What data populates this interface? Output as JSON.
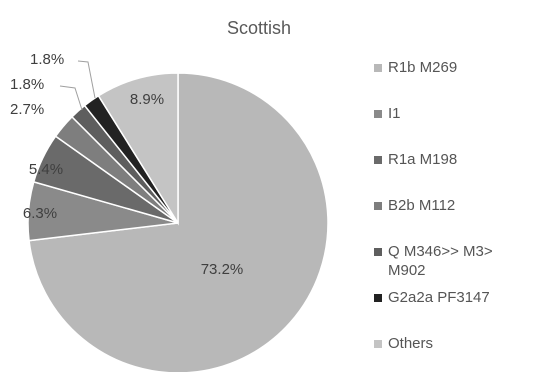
{
  "chart_data": {
    "type": "pie",
    "title": "Scottish",
    "slices": [
      {
        "label": "R1b M269",
        "value": 73.2,
        "display": "73.2%",
        "color": "#b8b8b8"
      },
      {
        "label": "I1",
        "value": 6.3,
        "display": "6.3%",
        "color": "#8a8a8a"
      },
      {
        "label": "R1a M198",
        "value": 5.4,
        "display": "5.4%",
        "color": "#6a6a6a"
      },
      {
        "label": "B2b M112",
        "value": 2.7,
        "display": "2.7%",
        "color": "#7e7e7e"
      },
      {
        "label": "Q M346>> M3> M902",
        "value": 1.8,
        "display": "1.8%",
        "color": "#5e5e5e"
      },
      {
        "label": "G2a2a PF3147",
        "value": 1.8,
        "display": "1.8%",
        "color": "#222222"
      },
      {
        "label": "Others",
        "value": 8.9,
        "display": "8.9%",
        "color": "#c4c4c4"
      }
    ],
    "legend_position": "right"
  }
}
